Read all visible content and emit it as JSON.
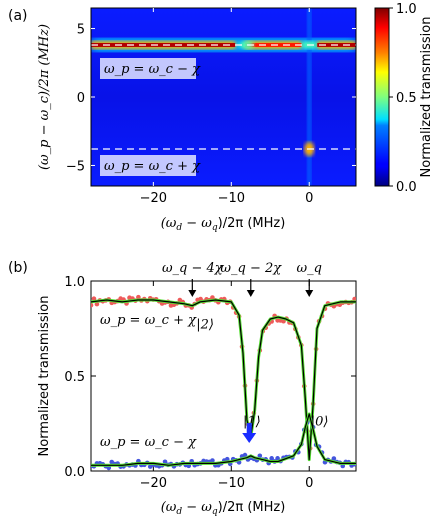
{
  "chart_data": [
    {
      "panel_label": "(a)",
      "type": "heatmap",
      "xlabel": "(ω_d − ω_q)/2π (MHz)",
      "ylabel": "(ω_p − ω_c)/2π (MHz)",
      "xlim": [
        -28,
        6
      ],
      "ylim": [
        -6.5,
        6.5
      ],
      "xticks": [
        -20,
        -10,
        0
      ],
      "yticks": [
        5,
        0,
        -5
      ],
      "colormap": "jet",
      "colorbar": {
        "label": "Normalized transmission",
        "range": [
          0.0,
          1.0
        ],
        "ticks": [
          "1.0",
          "0.5",
          "0.0"
        ]
      },
      "dashed_lines_y": [
        3.8,
        -3.8
      ],
      "upper_line": {
        "y": 3.8,
        "segments": [
          {
            "x": [
              -28,
              -9.5
            ],
            "value": 0.95
          },
          {
            "x": [
              -8.2,
              -1.0
            ],
            "value": 0.85
          },
          {
            "x": [
              1.0,
              6.0
            ],
            "value": 0.95
          }
        ],
        "dips_x": [
          -8.0,
          0.0
        ]
      },
      "lower_spot": {
        "x": 0.0,
        "y": -3.8,
        "value": 0.7
      },
      "annotations": [
        {
          "text": "ω_p = ω_c − χ",
          "y": 3.8
        },
        {
          "text": "ω_p = ω_c + χ",
          "y": -3.8
        }
      ]
    },
    {
      "panel_label": "(b)",
      "type": "line",
      "xlabel": "(ω_d − ω_q)/2π (MHz)",
      "ylabel": "Normalized transmission",
      "xlim": [
        -28,
        6
      ],
      "ylim": [
        0,
        1
      ],
      "xticks": [
        -20,
        -10,
        0
      ],
      "yticks": [
        0.0,
        0.5,
        1.0
      ],
      "ytick_labels": [
        "0.0",
        "0.5",
        "1.0"
      ],
      "top_annotations": [
        {
          "text": "ω_q − 4χ",
          "x": -15
        },
        {
          "text": "ω_q − 2χ",
          "x": -7.5
        },
        {
          "text": "ω_q",
          "x": 0
        }
      ],
      "state_labels": [
        {
          "text": "|2⟩",
          "x": -14.5,
          "y": 0.75
        },
        {
          "text": "|1⟩",
          "x": -8.5,
          "y": 0.24
        },
        {
          "text": "|0⟩",
          "x": 0.2,
          "y": 0.24
        }
      ],
      "blue_arrow_x": -7.7,
      "series": [
        {
          "name": "ω_p = ω_c + χ",
          "marker_color": "#ee5a5a",
          "x": [
            -28,
            -26,
            -24,
            -22,
            -20,
            -18,
            -16,
            -15,
            -14,
            -12,
            -10,
            -9,
            -8.5,
            -8,
            -7.5,
            -7,
            -6.5,
            -6,
            -5,
            -4,
            -3,
            -2,
            -1,
            -0.5,
            0,
            0.5,
            1,
            2,
            4,
            6
          ],
          "y": [
            0.89,
            0.9,
            0.89,
            0.9,
            0.9,
            0.89,
            0.88,
            0.87,
            0.89,
            0.9,
            0.89,
            0.82,
            0.62,
            0.27,
            0.18,
            0.32,
            0.6,
            0.74,
            0.8,
            0.81,
            0.8,
            0.78,
            0.66,
            0.38,
            0.06,
            0.35,
            0.75,
            0.87,
            0.89,
            0.89
          ]
        },
        {
          "name": "ω_p = ω_c − χ",
          "marker_color": "#4455dd",
          "x": [
            -28,
            -26,
            -24,
            -22,
            -20,
            -18,
            -16,
            -14,
            -12,
            -10,
            -9,
            -8,
            -7.5,
            -7,
            -6,
            -5,
            -4,
            -2,
            -1,
            -0.5,
            0,
            0.5,
            1,
            2,
            4,
            6
          ],
          "y": [
            0.03,
            0.03,
            0.03,
            0.04,
            0.04,
            0.03,
            0.04,
            0.04,
            0.04,
            0.05,
            0.06,
            0.07,
            0.08,
            0.07,
            0.06,
            0.05,
            0.05,
            0.08,
            0.14,
            0.23,
            0.3,
            0.22,
            0.13,
            0.06,
            0.04,
            0.04
          ]
        }
      ]
    }
  ],
  "labels": {
    "panel_a": "(a)",
    "panel_b": "(b)",
    "a_xlabel_l": "(ω",
    "a_xlabel_sub1": "d",
    "a_xlabel_m": " − ω",
    "a_xlabel_sub2": "q",
    "a_xlabel_r": ")/2π (MHz)",
    "a_ylabel": "(ω_p − ω_c)/2π (MHz)",
    "colorbar_label": "Normalized transmission",
    "b_ylabel": "Normalized transmission",
    "ann_top_minus": "ω_p = ω_c − χ",
    "ann_bot_plus": "ω_p = ω_c + χ",
    "b_ann_plus": "ω_p = ω_c + χ",
    "b_ann_minus": "ω_p = ω_c − χ",
    "b_top1": "ω_q − 4χ",
    "b_top2": "ω_q − 2χ",
    "b_top3": "ω_q",
    "state2": "|2⟩",
    "state1": "|1⟩",
    "state0": "|0⟩"
  }
}
